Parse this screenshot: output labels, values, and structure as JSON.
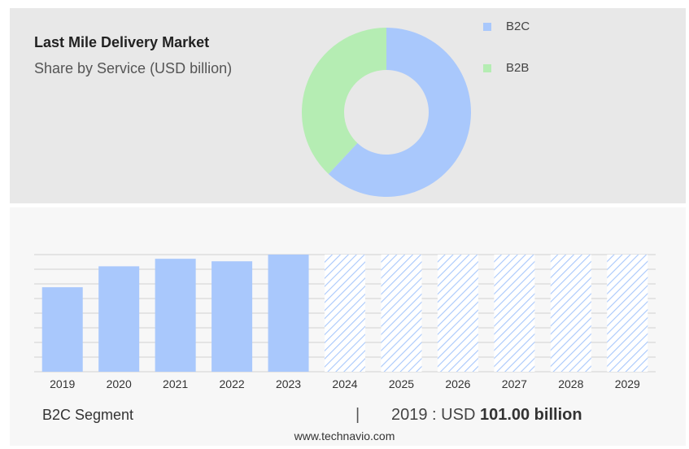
{
  "header": {
    "title": "Last Mile Delivery Market",
    "subtitle": "Share by Service (USD billion)"
  },
  "legend": [
    {
      "label": "B2C",
      "color": "#a9c8fc"
    },
    {
      "label": "B2B",
      "color": "#b5edb3"
    }
  ],
  "footer": {
    "segment": "B2C Segment",
    "divider": "|",
    "year_prefix": "2019 : USD",
    "value_text": "101.00 billion",
    "source": "www.technavio.com"
  },
  "chart_data": [
    {
      "type": "pie",
      "slices": [
        {
          "label": "B2C",
          "value": 62,
          "color": "#a9c8fc"
        },
        {
          "label": "B2B",
          "value": 38,
          "color": "#b5edb3"
        }
      ]
    },
    {
      "type": "bar",
      "categories": [
        "2019",
        "2020",
        "2021",
        "2022",
        "2023",
        "2024",
        "2025",
        "2026",
        "2027",
        "2028",
        "2029"
      ],
      "values": [
        101,
        126,
        135,
        132,
        140,
        140,
        140,
        140,
        140,
        140,
        140
      ],
      "forecast_from": "2024",
      "ylim": [
        0,
        140
      ],
      "grid": true,
      "bar_color": "#a9c8fc",
      "forecast_color": "#a9c8fc"
    }
  ]
}
